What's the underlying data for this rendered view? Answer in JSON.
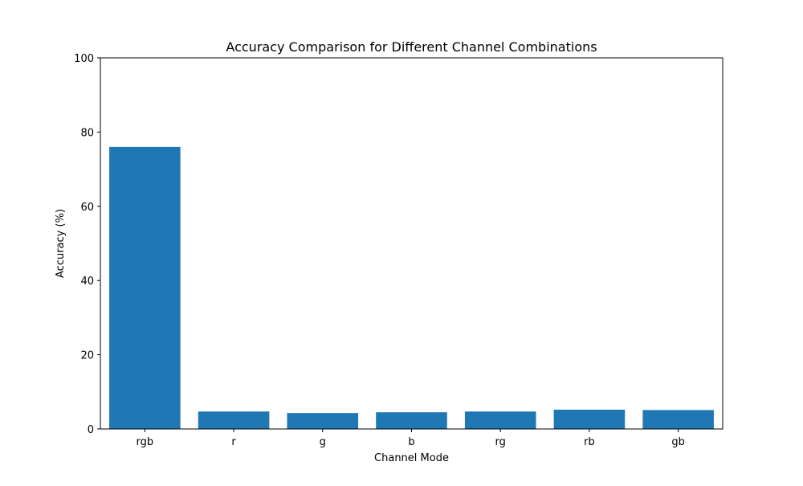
{
  "chart_data": {
    "type": "bar",
    "title": "Accuracy Comparison for Different Channel Combinations",
    "xlabel": "Channel Mode",
    "ylabel": "Accuracy (%)",
    "categories": [
      "rgb",
      "r",
      "g",
      "b",
      "rg",
      "rb",
      "gb"
    ],
    "values": [
      76.0,
      4.7,
      4.3,
      4.5,
      4.7,
      5.2,
      5.1
    ],
    "ylim": [
      0,
      100
    ],
    "yticks": [
      0,
      20,
      40,
      60,
      80,
      100
    ],
    "grid": false,
    "legend": "none",
    "bar_color": "#1f77b4"
  }
}
